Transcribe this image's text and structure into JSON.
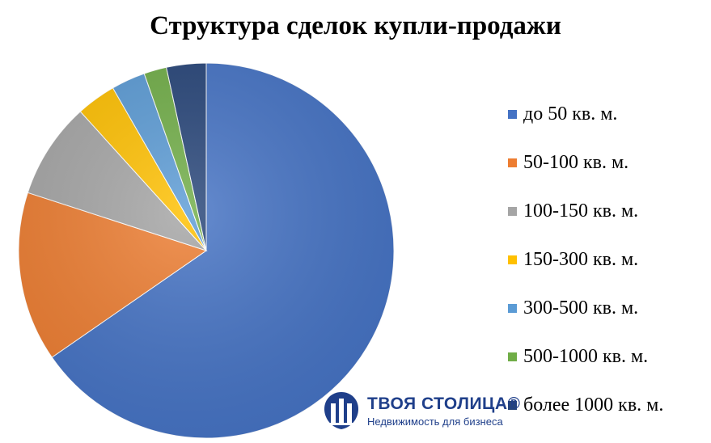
{
  "chart_data": {
    "type": "pie",
    "title": "Структура сделок купли-продажи",
    "legend_position": "right",
    "slices": [
      {
        "label": "до 50 кв. м.",
        "value": 67.0,
        "color": "#4472C4"
      },
      {
        "label": "50-100 кв. м.",
        "value": 15.0,
        "color": "#ED7D31"
      },
      {
        "label": "100-150 кв. м.",
        "value": 8.5,
        "color": "#A5A5A5"
      },
      {
        "label": "150-300 кв. м.",
        "value": 3.5,
        "color": "#FFC000"
      },
      {
        "label": "300-500 кв. м.",
        "value": 3.0,
        "color": "#5B9BD5"
      },
      {
        "label": "500-1000 кв. м.",
        "value": 2.0,
        "color": "#70AD47"
      },
      {
        "label": "более 1000 кв. м.",
        "value": 3.5,
        "color": "#264478"
      }
    ]
  },
  "logo": {
    "name": "ТВОЯ СТОЛИЦА®",
    "tagline": "Недвижимость для бизнеса",
    "color": "#1f3f8a"
  }
}
